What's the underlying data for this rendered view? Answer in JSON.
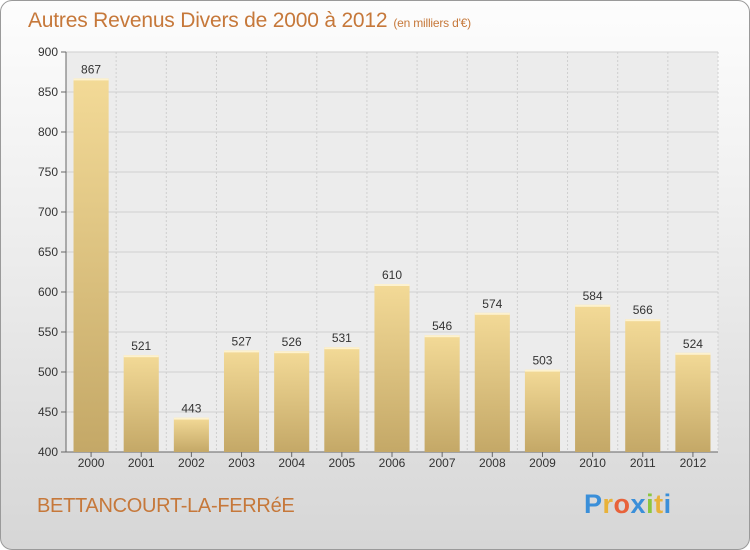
{
  "header": {
    "title": "Autres Revenus Divers de 2000 à 2012",
    "subtitle": "(en milliers d'€)"
  },
  "footer": {
    "commune": "BETTANCOURT-LA-FERRéE",
    "brand_letters": [
      "P",
      "r",
      "o",
      "x",
      "i",
      "t",
      "i"
    ],
    "brand_colors": [
      "#3a8fd9",
      "#e8b23a",
      "#e8623a",
      "#3a8fd9",
      "#8cc63f",
      "#e8b23a",
      "#3a8fd9"
    ]
  },
  "colors": {
    "title": "#c6783a",
    "bar_light": "#f3da97",
    "bar_dark": "#c4a867",
    "grid": "#cfcfcf"
  },
  "chart_data": {
    "type": "bar",
    "title": "Autres Revenus Divers de 2000 à 2012",
    "subtitle": "(en milliers d'€)",
    "categories": [
      "2000",
      "2001",
      "2002",
      "2003",
      "2004",
      "2005",
      "2006",
      "2007",
      "2008",
      "2009",
      "2010",
      "2011",
      "2012"
    ],
    "values": [
      867,
      521,
      443,
      527,
      526,
      531,
      610,
      546,
      574,
      503,
      584,
      566,
      524
    ],
    "ylim": [
      400,
      900
    ],
    "yticks": [
      400,
      450,
      500,
      550,
      600,
      650,
      700,
      750,
      800,
      850,
      900
    ],
    "grid": true,
    "data_labels": true
  }
}
